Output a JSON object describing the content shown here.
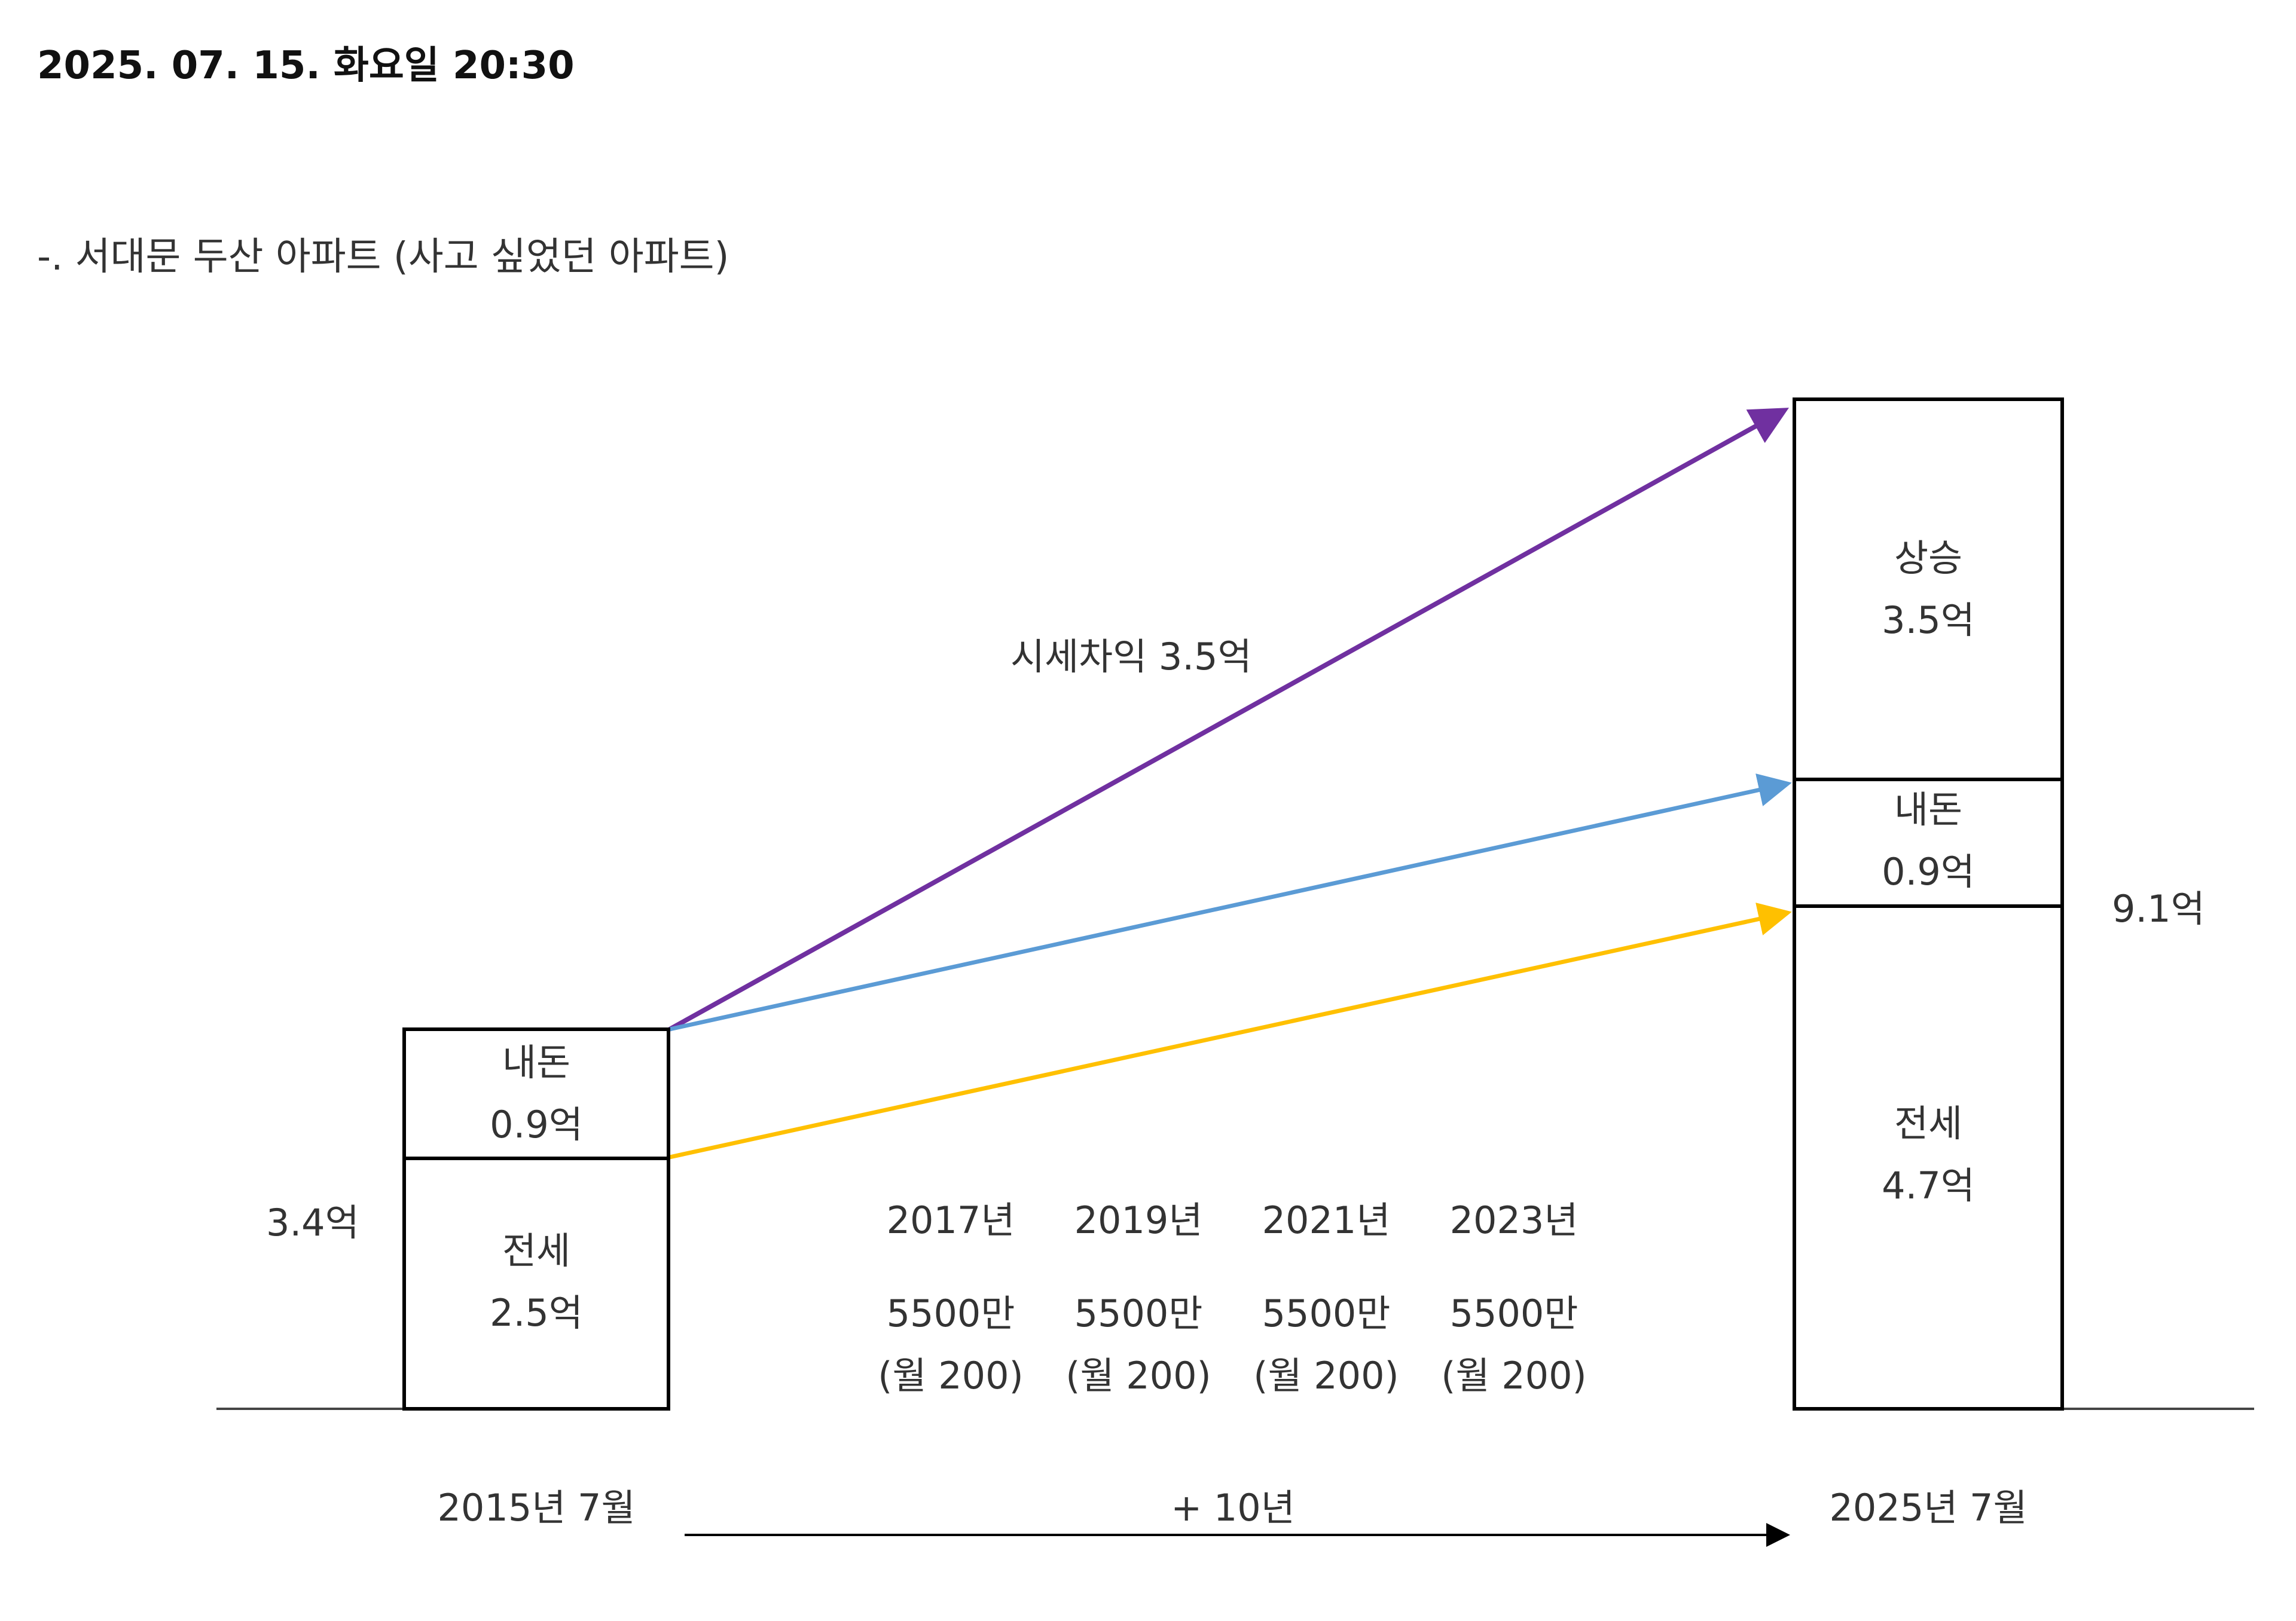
{
  "header": {
    "date": "2025. 07. 15. 화요일 20:30"
  },
  "subtitle": "-. 서대문 두산 아파트 (사고 싶었던 아파트)",
  "left_stack": {
    "own_money_label": "내돈",
    "own_money_value": "0.9억",
    "jeonse_label": "전세",
    "jeonse_value": "2.5억",
    "total": "3.4억",
    "date": "2015년 7월"
  },
  "right_stack": {
    "rise_label": "상승",
    "rise_value": "3.5억",
    "own_money_label": "내돈",
    "own_money_value": "0.9억",
    "jeonse_label": "전세",
    "jeonse_value": "4.7억",
    "total": "9.1억",
    "date": "2025년 7월"
  },
  "gain_label": "시세차익 3.5억",
  "period_label": "+ 10년",
  "savings": [
    {
      "year": "2017년",
      "amount": "5500만",
      "monthly": "(월 200)"
    },
    {
      "year": "2019년",
      "amount": "5500만",
      "monthly": "(월 200)"
    },
    {
      "year": "2021년",
      "amount": "5500만",
      "monthly": "(월 200)"
    },
    {
      "year": "2023년",
      "amount": "5500만",
      "monthly": "(월 200)"
    }
  ],
  "colors": {
    "gain_arrow": "#7030A0",
    "own_money_arrow": "#5B9BD5",
    "jeonse_arrow": "#FFC000",
    "box_border": "#000000"
  }
}
